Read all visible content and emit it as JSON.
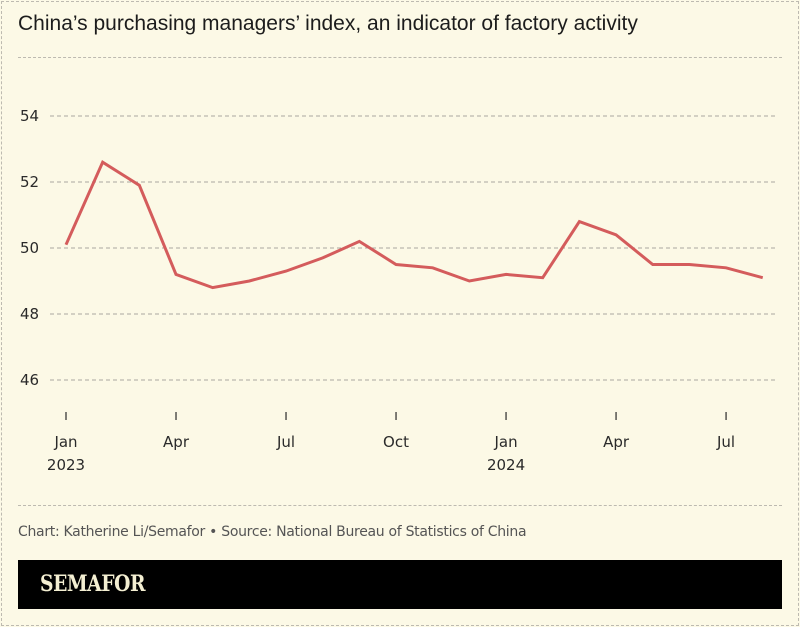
{
  "header": {
    "title": "China’s purchasing managers’ index, an indicator of factory activity"
  },
  "footer": {
    "credit": "Chart: Katherine Li/Semafor • Source: National Bureau of Statistics of China",
    "brand": "SEMAFOR"
  },
  "colors": {
    "line": "#d45c5c",
    "background": "#fcf9e6",
    "grid": "#aaa8a0"
  },
  "chart_data": {
    "type": "line",
    "title": "China’s purchasing managers’ index, an indicator of factory activity",
    "xlabel": "",
    "ylabel": "",
    "ylim": [
      45,
      55.5
    ],
    "yticks": [
      46,
      48,
      50,
      52,
      54
    ],
    "grid": true,
    "x": [
      "2023-01",
      "2023-02",
      "2023-03",
      "2023-04",
      "2023-05",
      "2023-06",
      "2023-07",
      "2023-08",
      "2023-09",
      "2023-10",
      "2023-11",
      "2023-12",
      "2024-01",
      "2024-02",
      "2024-03",
      "2024-04",
      "2024-05",
      "2024-06",
      "2024-07",
      "2024-08"
    ],
    "xticks": [
      {
        "index": 0,
        "label": "Jan",
        "sublabel": "2023"
      },
      {
        "index": 3,
        "label": "Apr",
        "sublabel": ""
      },
      {
        "index": 6,
        "label": "Jul",
        "sublabel": ""
      },
      {
        "index": 9,
        "label": "Oct",
        "sublabel": ""
      },
      {
        "index": 12,
        "label": "Jan",
        "sublabel": "2024"
      },
      {
        "index": 15,
        "label": "Apr",
        "sublabel": ""
      },
      {
        "index": 18,
        "label": "Jul",
        "sublabel": ""
      }
    ],
    "series": [
      {
        "name": "PMI",
        "values": [
          50.1,
          52.6,
          51.9,
          49.2,
          48.8,
          49.0,
          49.3,
          49.7,
          50.2,
          49.5,
          49.4,
          49.0,
          49.2,
          49.1,
          50.8,
          50.4,
          49.5,
          49.5,
          49.4,
          49.1
        ]
      }
    ]
  }
}
